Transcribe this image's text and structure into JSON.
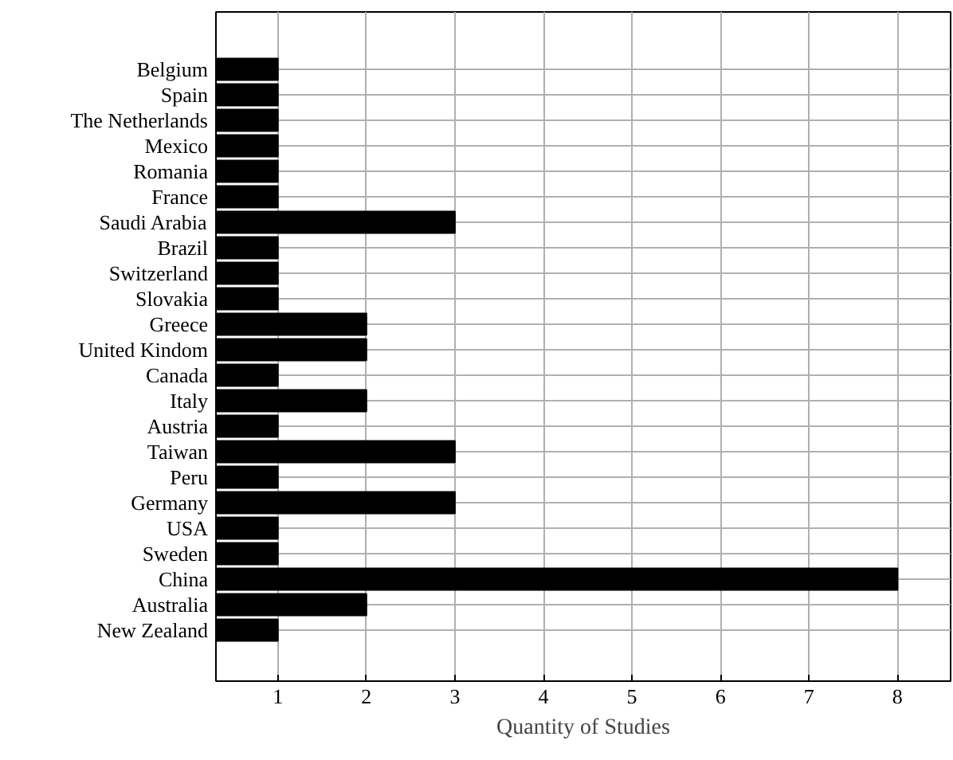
{
  "chart_data": {
    "type": "bar",
    "orientation": "horizontal",
    "xlabel": "Quantity of Studies",
    "categories": [
      "Belgium",
      "Spain",
      "The Netherlands",
      "Mexico",
      "Romania",
      "France",
      "Saudi Arabia",
      "Brazil",
      "Switzerland",
      "Slovakia",
      "Greece",
      "United Kindom",
      "Canada",
      "Italy",
      "Austria",
      "Taiwan",
      "Peru",
      "Germany",
      "USA",
      "Sweden",
      "China",
      "Australia",
      "New Zealand"
    ],
    "values": [
      1,
      1,
      1,
      1,
      1,
      1,
      3,
      1,
      1,
      1,
      2,
      2,
      1,
      2,
      1,
      3,
      1,
      3,
      1,
      1,
      8,
      2,
      1
    ],
    "color": "#000000",
    "xlim": [
      0.3,
      8.6
    ],
    "xticks": [
      1,
      2,
      3,
      4,
      5,
      6,
      7,
      8
    ],
    "grid": true
  }
}
